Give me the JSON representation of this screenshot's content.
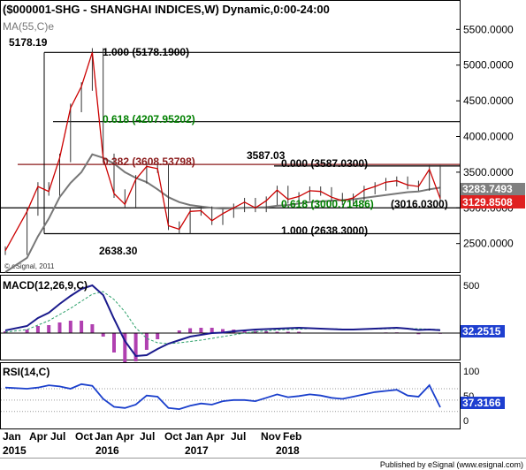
{
  "header": {
    "title": "($000001-SHG - SHANGHAI INDICES,W) Dynamic,0:00-24:00",
    "ma_label": "MA(55,C)e"
  },
  "copyright": "© eSignal, 2011",
  "footer": {
    "published": "Published by eSignal (www.esignal.com)"
  },
  "colors": {
    "price": "#cc0000",
    "ma": "#777777",
    "fib_dark_red": "#8b1a1a",
    "fib_green": "#008000",
    "macd": "#1a1a8c",
    "macd_signal": "#2ca06a",
    "macd_hist": "#b040b0",
    "rsi": "#1a3fcc",
    "label_grey_bg": "#808080",
    "label_red_bg": "#e02020",
    "label_blue_bg": "#1e3fd0"
  },
  "chart_data": [
    {
      "type": "line",
      "title": "($000001-SHG - SHANGHAI INDICES,W) Dynamic,0:00-24:00",
      "panel": "price",
      "ylim": [
        2100,
        5900
      ],
      "y_ticks": [
        "5500.0000",
        "5000.0000",
        "4500.0000",
        "4000.0000",
        "3500.0000",
        "3000.0000",
        "2500.0000"
      ],
      "x_ticks": [
        "Jan",
        "Apr",
        "Jul",
        "Oct",
        "Jan",
        "Apr",
        "Jul",
        "Oct",
        "Jan",
        "Apr",
        "Jul",
        "Nov",
        "Feb"
      ],
      "x_years": [
        "2015",
        "2016",
        "2017",
        "2018"
      ],
      "x": [
        "2014-10",
        "2014-12",
        "2015-01",
        "2015-02",
        "2015-03",
        "2015-04",
        "2015-05",
        "2015-06",
        "2015-07",
        "2015-08",
        "2015-09",
        "2015-10",
        "2015-11",
        "2015-12",
        "2016-01",
        "2016-02",
        "2016-03",
        "2016-04",
        "2016-05",
        "2016-06",
        "2016-07",
        "2016-08",
        "2016-09",
        "2016-10",
        "2016-11",
        "2016-12",
        "2017-01",
        "2017-02",
        "2017-03",
        "2017-04",
        "2017-05",
        "2017-06",
        "2017-07",
        "2017-08",
        "2017-09",
        "2017-10",
        "2017-11",
        "2017-12",
        "2018-01",
        "2018-02"
      ],
      "series": [
        {
          "values": [
            2400,
            2950,
            3300,
            3230,
            3700,
            4400,
            4700,
            5178,
            3700,
            3200,
            3050,
            3400,
            3580,
            3550,
            2750,
            2700,
            2950,
            2960,
            2820,
            2920,
            3000,
            3080,
            3000,
            3100,
            3250,
            3120,
            3160,
            3240,
            3230,
            3150,
            3100,
            3140,
            3250,
            3300,
            3360,
            3380,
            3320,
            3300,
            3540,
            3129.85
          ]
        },
        {
          "name": "MA(55,C)e",
          "values": [
            2100,
            2300,
            2600,
            2850,
            3150,
            3350,
            3500,
            3750,
            3700,
            3620,
            3500,
            3420,
            3360,
            3260,
            3150,
            3080,
            3040,
            3020,
            3000,
            2990,
            2995,
            3000,
            3005,
            3010,
            3030,
            3040,
            3060,
            3080,
            3090,
            3100,
            3110,
            3120,
            3140,
            3160,
            3180,
            3200,
            3220,
            3230,
            3260,
            3283.75
          ]
        }
      ],
      "price_labels": [
        "3283.7493",
        "3129.8508"
      ],
      "annotations": [
        "5178.19",
        "3587.03",
        "2638.30"
      ],
      "fib_levels": [
        {
          "value": 5178.19,
          "label": "1.000 (5178.1900)"
        },
        {
          "value": 4207.95202,
          "label": "0.618 (4207.95202)"
        },
        {
          "value": 3608.53798,
          "label": "0.382 (3608.53798)"
        },
        {
          "value": 3587.03,
          "label": "0.000 (3587.0300)"
        },
        {
          "value": 3000.71486,
          "label": "0.618 (3000.71486)"
        },
        {
          "value": 3016.03,
          "label": "(3016.0300)"
        },
        {
          "value": 2638.3,
          "label": "1.000 (2638.3000)"
        }
      ]
    },
    {
      "type": "line",
      "title": "MACD(12,26,9,C)",
      "panel": "macd",
      "ylim": [
        -300,
        650
      ],
      "y_ticks": [
        "500"
      ],
      "series": [
        {
          "name": "MACD",
          "values": [
            30,
            80,
            170,
            230,
            330,
            420,
            500,
            540,
            430,
            160,
            -90,
            -260,
            -250,
            -180,
            -120,
            -80,
            -40,
            -20,
            0,
            5,
            20,
            30,
            40,
            45,
            50,
            55,
            60,
            55,
            50,
            45,
            40,
            40,
            45,
            50,
            55,
            60,
            50,
            35,
            40,
            32.2515
          ]
        },
        {
          "name": "Signal",
          "values": [
            10,
            40,
            90,
            140,
            210,
            280,
            360,
            440,
            470,
            380,
            240,
            60,
            -60,
            -110,
            -120,
            -110,
            -95,
            -80,
            -60,
            -40,
            -20,
            0,
            15,
            25,
            35,
            40,
            45,
            50,
            50,
            48,
            45,
            43,
            43,
            45,
            48,
            52,
            52,
            48,
            44,
            40
          ]
        }
      ],
      "value_label": "32.2515"
    },
    {
      "type": "line",
      "title": "RSI(14,C)",
      "panel": "rsi",
      "ylim": [
        0,
        115
      ],
      "y_ticks": [
        "100",
        "50",
        "0"
      ],
      "series": [
        {
          "name": "RSI(14,C)",
          "values": [
            72,
            70,
            72,
            76,
            74,
            70,
            78,
            75,
            52,
            38,
            36,
            42,
            58,
            56,
            36,
            34,
            40,
            44,
            42,
            48,
            50,
            50,
            48,
            54,
            60,
            55,
            57,
            60,
            58,
            54,
            52,
            56,
            60,
            64,
            66,
            68,
            58,
            56,
            76,
            37.3166
          ]
        }
      ],
      "value_label": "37.3166"
    }
  ]
}
